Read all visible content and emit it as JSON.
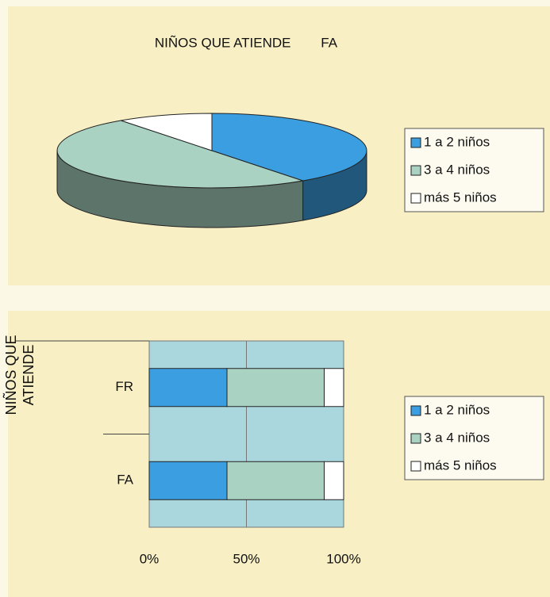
{
  "chart_data": [
    {
      "type": "pie",
      "title": "NIÑOS QUE ATIENDE        FA",
      "categories": [
        "1 a 2 niños",
        "3 a 4 niños",
        "más 5 niños"
      ],
      "values": [
        40,
        50,
        10
      ],
      "colors": [
        "#3a9ee0",
        "#a9d2c2",
        "#ffffff"
      ],
      "legend": "right"
    },
    {
      "type": "bar",
      "orientation": "horizontal",
      "stacked": true,
      "y_label": "NIÑOS QUE ATIENDE",
      "categories": [
        "FA",
        "FR"
      ],
      "series": [
        {
          "name": "1 a 2 niños",
          "color": "#3a9ee0",
          "values": [
            40,
            40
          ]
        },
        {
          "name": "3 a 4 niños",
          "color": "#a9d2c2",
          "values": [
            50,
            50
          ]
        },
        {
          "name": "más 5 niños",
          "color": "#ffffff",
          "values": [
            10,
            10
          ]
        }
      ],
      "xlim": [
        0,
        100
      ],
      "xticks": [
        {
          "value": 0,
          "label": "0%"
        },
        {
          "value": 50,
          "label": "50%"
        },
        {
          "value": 100,
          "label": "100%"
        }
      ],
      "grid": true,
      "legend": "right"
    }
  ]
}
